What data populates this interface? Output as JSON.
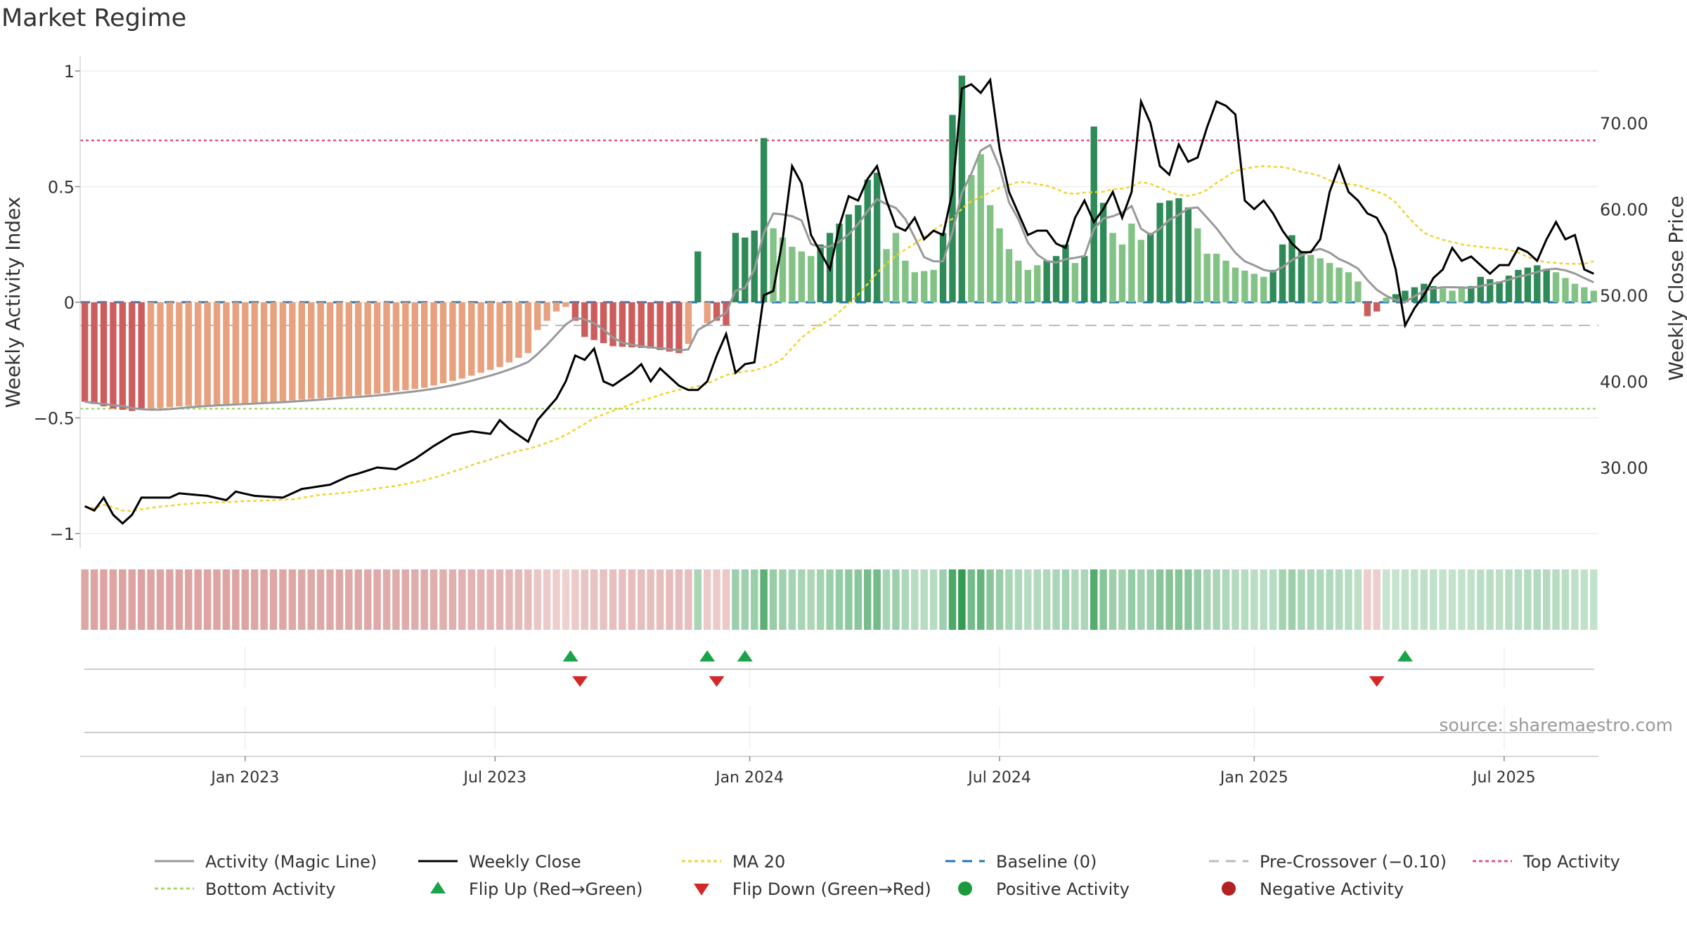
{
  "chart_data": {
    "type": "bar",
    "title": "Market Regime",
    "source": "source: sharemaestro.com",
    "y_left": {
      "label": "Weekly Activity Index",
      "ylim": [
        -1.05,
        1.1
      ],
      "ticks": [
        1,
        0.5,
        0,
        -0.5,
        -1
      ],
      "tick_labels": [
        "1",
        "0.5",
        "0",
        "−0.5",
        "−1"
      ]
    },
    "y_right": {
      "label": "Weekly Close Price",
      "ylim": [
        22,
        78
      ],
      "ticks": [
        70,
        60,
        50,
        40,
        30
      ],
      "tick_labels": [
        "70.00",
        "60.00",
        "50.00",
        "40.00",
        "30.00"
      ]
    },
    "x_axis": {
      "tick_labels": [
        "Jan 2023",
        "Jul 2023",
        "Jan 2024",
        "Jul 2024",
        "Jan 2025",
        "Jul 2025"
      ],
      "tick_weeks": [
        17,
        43.5,
        70.5,
        97,
        124,
        150.5
      ],
      "n_weeks": 161
    },
    "reference_lines": {
      "top_activity": 0.7,
      "bottom_activity": -0.46,
      "baseline": 0,
      "pre_crossover": -0.1
    },
    "activity_keys": [
      [
        0,
        -0.43
      ],
      [
        3,
        -0.46
      ],
      [
        5,
        -0.47
      ],
      [
        10,
        -0.45
      ],
      [
        20,
        -0.43
      ],
      [
        30,
        -0.4
      ],
      [
        36,
        -0.37
      ],
      [
        40,
        -0.33
      ],
      [
        44,
        -0.28
      ],
      [
        47,
        -0.22
      ],
      [
        48,
        -0.12
      ],
      [
        50,
        -0.04
      ],
      [
        51,
        -0.02
      ],
      [
        52,
        -0.08
      ],
      [
        53,
        -0.15
      ],
      [
        56,
        -0.19
      ],
      [
        60,
        -0.2
      ],
      [
        63,
        -0.22
      ],
      [
        64,
        -0.18
      ],
      [
        65,
        0.22
      ],
      [
        66,
        -0.09
      ],
      [
        67,
        -0.08
      ],
      [
        68,
        -0.1
      ],
      [
        69,
        0.3
      ],
      [
        70,
        0.28
      ],
      [
        71,
        0.31
      ],
      [
        72,
        0.71
      ],
      [
        73,
        0.32
      ],
      [
        74,
        0.28
      ],
      [
        75,
        0.24
      ],
      [
        77,
        0.2
      ],
      [
        79,
        0.3
      ],
      [
        82,
        0.42
      ],
      [
        83,
        0.53
      ],
      [
        84,
        0.56
      ],
      [
        85,
        0.23
      ],
      [
        86,
        0.3
      ],
      [
        87,
        0.18
      ],
      [
        88,
        0.13
      ],
      [
        90,
        0.14
      ],
      [
        91,
        0.3
      ],
      [
        92,
        0.81
      ],
      [
        93,
        0.98
      ],
      [
        94,
        0.55
      ],
      [
        95,
        0.64
      ],
      [
        96,
        0.42
      ],
      [
        97,
        0.32
      ],
      [
        98,
        0.23
      ],
      [
        99,
        0.18
      ],
      [
        100,
        0.14
      ],
      [
        103,
        0.2
      ],
      [
        104,
        0.25
      ],
      [
        105,
        0.17
      ],
      [
        106,
        0.2
      ],
      [
        107,
        0.76
      ],
      [
        108,
        0.43
      ],
      [
        109,
        0.3
      ],
      [
        110,
        0.25
      ],
      [
        111,
        0.34
      ],
      [
        112,
        0.27
      ],
      [
        113,
        0.3
      ],
      [
        114,
        0.43
      ],
      [
        115,
        0.44
      ],
      [
        116,
        0.45
      ],
      [
        117,
        0.41
      ],
      [
        118,
        0.32
      ],
      [
        119,
        0.21
      ],
      [
        120,
        0.21
      ],
      [
        122,
        0.15
      ],
      [
        125,
        0.11
      ],
      [
        126,
        0.14
      ],
      [
        127,
        0.25
      ],
      [
        128,
        0.29
      ],
      [
        129,
        0.22
      ],
      [
        131,
        0.19
      ],
      [
        134,
        0.13
      ],
      [
        135,
        0.09
      ],
      [
        136,
        -0.06
      ],
      [
        137,
        -0.04
      ],
      [
        138,
        0.02
      ],
      [
        140,
        0.05
      ],
      [
        142,
        0.08
      ],
      [
        144,
        0.06
      ],
      [
        145,
        0.05
      ],
      [
        147,
        0.07
      ],
      [
        148,
        0.11
      ],
      [
        150,
        0.09
      ],
      [
        152,
        0.14
      ],
      [
        154,
        0.16
      ],
      [
        156,
        0.13
      ],
      [
        158,
        0.08
      ],
      [
        160,
        0.05
      ]
    ],
    "close_keys": [
      [
        0,
        25.5
      ],
      [
        1,
        25
      ],
      [
        2,
        26.5
      ],
      [
        3,
        24.5
      ],
      [
        4,
        23.5
      ],
      [
        5,
        24.5
      ],
      [
        6,
        26.5
      ],
      [
        9,
        26.5
      ],
      [
        10,
        27
      ],
      [
        13,
        26.7
      ],
      [
        15,
        26.2
      ],
      [
        16,
        27.2
      ],
      [
        18,
        26.7
      ],
      [
        21,
        26.5
      ],
      [
        23,
        27.5
      ],
      [
        26,
        28
      ],
      [
        28,
        29
      ],
      [
        29,
        29.3
      ],
      [
        31,
        30
      ],
      [
        33,
        29.8
      ],
      [
        35,
        31
      ],
      [
        37,
        32.5
      ],
      [
        39,
        33.8
      ],
      [
        41,
        34.2
      ],
      [
        43,
        33.9
      ],
      [
        44,
        35.5
      ],
      [
        45,
        34.5
      ],
      [
        47,
        33
      ],
      [
        48,
        35.5
      ],
      [
        50,
        38
      ],
      [
        51,
        40
      ],
      [
        52,
        43
      ],
      [
        53,
        42.5
      ],
      [
        54,
        43.8
      ],
      [
        55,
        40
      ],
      [
        56,
        39.5
      ],
      [
        58,
        41
      ],
      [
        59,
        42
      ],
      [
        60,
        40
      ],
      [
        61,
        41.5
      ],
      [
        63,
        39.5
      ],
      [
        64,
        39
      ],
      [
        65,
        39
      ],
      [
        66,
        40
      ],
      [
        67,
        43
      ],
      [
        68,
        45.5
      ],
      [
        69,
        41
      ],
      [
        70,
        42
      ],
      [
        71,
        42.2
      ],
      [
        72,
        50
      ],
      [
        73,
        50.5
      ],
      [
        74,
        56.5
      ],
      [
        75,
        65
      ],
      [
        76,
        63
      ],
      [
        77,
        57
      ],
      [
        78,
        55
      ],
      [
        79,
        53
      ],
      [
        80,
        58
      ],
      [
        81,
        61.5
      ],
      [
        82,
        61
      ],
      [
        83,
        63.5
      ],
      [
        84,
        65
      ],
      [
        85,
        61
      ],
      [
        86,
        58
      ],
      [
        87,
        57.5
      ],
      [
        88,
        59
      ],
      [
        89,
        56.5
      ],
      [
        90,
        57.5
      ],
      [
        91,
        57
      ],
      [
        92,
        62
      ],
      [
        93,
        74
      ],
      [
        94,
        74.5
      ],
      [
        95,
        73.5
      ],
      [
        96,
        75
      ],
      [
        97,
        67
      ],
      [
        98,
        62
      ],
      [
        99,
        59.5
      ],
      [
        100,
        57
      ],
      [
        101,
        57.5
      ],
      [
        102,
        57.5
      ],
      [
        103,
        56
      ],
      [
        104,
        55.5
      ],
      [
        105,
        59
      ],
      [
        106,
        61
      ],
      [
        107,
        58.5
      ],
      [
        108,
        60
      ],
      [
        109,
        62
      ],
      [
        110,
        59
      ],
      [
        111,
        62
      ],
      [
        112,
        72.5
      ],
      [
        113,
        70
      ],
      [
        114,
        65
      ],
      [
        115,
        64
      ],
      [
        116,
        67.5
      ],
      [
        117,
        65.5
      ],
      [
        118,
        66
      ],
      [
        119,
        69.5
      ],
      [
        120,
        72.5
      ],
      [
        121,
        72
      ],
      [
        122,
        71
      ],
      [
        123,
        61
      ],
      [
        124,
        60
      ],
      [
        125,
        61
      ],
      [
        126,
        59.5
      ],
      [
        127,
        57.5
      ],
      [
        128,
        56
      ],
      [
        129,
        55
      ],
      [
        130,
        55
      ],
      [
        131,
        56.5
      ],
      [
        132,
        62
      ],
      [
        133,
        65
      ],
      [
        134,
        62
      ],
      [
        135,
        61
      ],
      [
        136,
        59.5
      ],
      [
        137,
        59
      ],
      [
        138,
        57
      ],
      [
        139,
        53
      ],
      [
        140,
        46.5
      ],
      [
        141,
        48.5
      ],
      [
        142,
        50
      ],
      [
        143,
        52
      ],
      [
        144,
        53
      ],
      [
        145,
        55.5
      ],
      [
        146,
        54
      ],
      [
        147,
        54.5
      ],
      [
        148,
        53.5
      ],
      [
        149,
        52.5
      ],
      [
        150,
        53.5
      ],
      [
        151,
        53.5
      ],
      [
        152,
        55.5
      ],
      [
        153,
        55
      ],
      [
        154,
        54
      ],
      [
        155,
        56.5
      ],
      [
        156,
        58.5
      ],
      [
        157,
        56.5
      ],
      [
        158,
        57
      ],
      [
        159,
        53
      ],
      [
        160,
        52.5
      ]
    ],
    "flip_up_weeks": [
      51.5,
      66,
      70
    ],
    "flip_down_weeks": [
      52.5,
      67,
      137
    ],
    "flip_up_late_week": 140,
    "colors": {
      "red_dark": "#cd5c5c",
      "red_light": "#e8a17f",
      "green_dark": "#2e8b57",
      "green_light": "#82c385",
      "magic_line": "#999999",
      "close_line": "#000000",
      "ma20": "#f0d430",
      "baseline": "#1f77b4",
      "pre_crossover": "#bbbbbb",
      "top_activity": "#e75480",
      "bottom_activity": "#a6d96a",
      "flip_up": "#1aa34a",
      "flip_down": "#d62728",
      "positive_activity": "#1a9a3a",
      "negative_activity": "#b22222"
    },
    "legend": {
      "placement": "bottom",
      "entries": [
        {
          "label": "Activity (Magic Line)",
          "icon": "solid-gray-line"
        },
        {
          "label": "Weekly Close",
          "icon": "solid-black-line"
        },
        {
          "label": "MA 20",
          "icon": "dotted-yellow-line"
        },
        {
          "label": "Baseline (0)",
          "icon": "dashed-blue-line"
        },
        {
          "label": "Pre-Crossover (−0.10)",
          "icon": "dashed-gray-line"
        },
        {
          "label": "Top Activity",
          "icon": "dotted-pink-line"
        },
        {
          "label": "Bottom Activity",
          "icon": "dotted-green-line"
        },
        {
          "label": "Flip Up (Red→Green)",
          "icon": "triangle-up-icon"
        },
        {
          "label": "Flip Down (Green→Red)",
          "icon": "triangle-down-icon"
        },
        {
          "label": "Positive Activity",
          "icon": "green-dot-icon"
        },
        {
          "label": "Negative Activity",
          "icon": "red-dot-icon"
        }
      ]
    },
    "grid": true
  }
}
